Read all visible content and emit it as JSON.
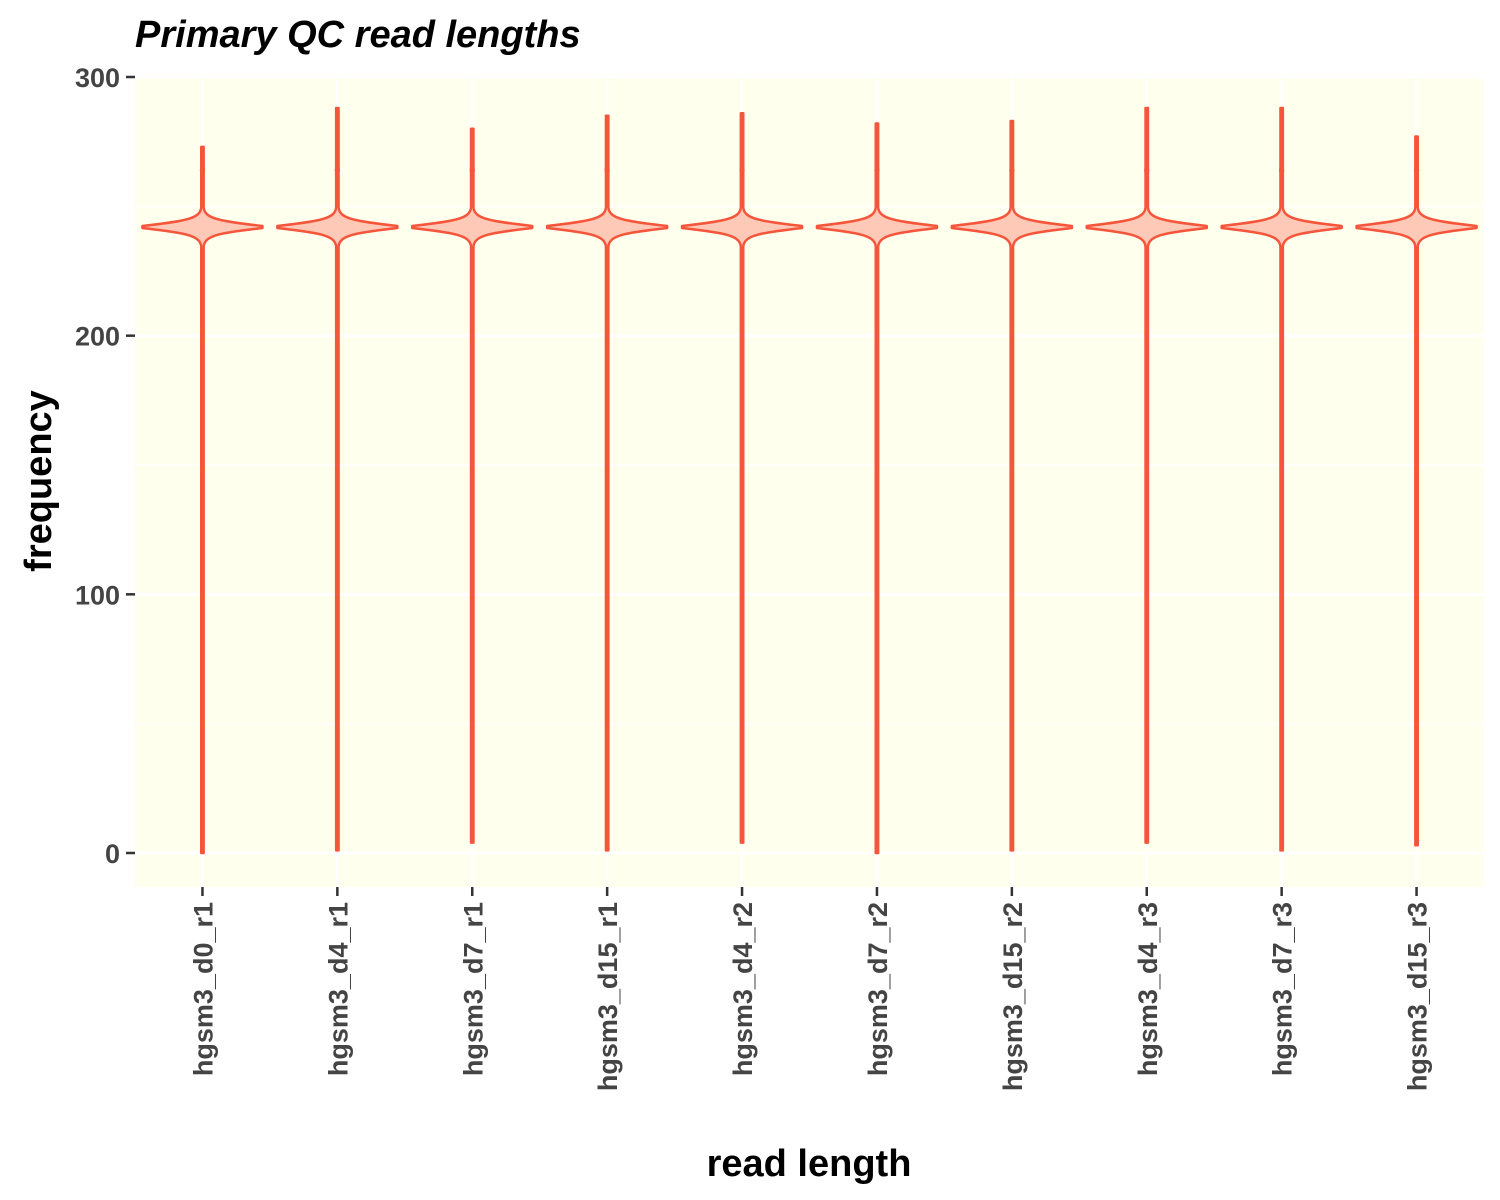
{
  "chart_data": {
    "type": "violin",
    "title": "Primary QC read lengths",
    "xlabel": "read length",
    "ylabel": "frequency",
    "ylim": [
      -12,
      300
    ],
    "yticks": [
      0,
      100,
      200,
      300
    ],
    "grid": true,
    "colors": {
      "panel": "#ffffee",
      "grid": "#ffffff",
      "stroke": "#f5553a",
      "fill": "#ffc9b8",
      "tick_text": "#444444"
    },
    "categories": [
      "hgsm3_d0_r1",
      "hgsm3_d4_r1",
      "hgsm3_d7_r1",
      "hgsm3_d15_r1",
      "hgsm3_d4_r2",
      "hgsm3_d7_r2",
      "hgsm3_d15_r2",
      "hgsm3_d4_r3",
      "hgsm3_d7_r3",
      "hgsm3_d15_r3"
    ],
    "series": [
      {
        "category": "hgsm3_d0_r1",
        "min": 0,
        "max": 273,
        "mode": 242
      },
      {
        "category": "hgsm3_d4_r1",
        "min": 1,
        "max": 288,
        "mode": 242
      },
      {
        "category": "hgsm3_d7_r1",
        "min": 4,
        "max": 280,
        "mode": 242
      },
      {
        "category": "hgsm3_d15_r1",
        "min": 1,
        "max": 285,
        "mode": 242
      },
      {
        "category": "hgsm3_d4_r2",
        "min": 4,
        "max": 286,
        "mode": 242
      },
      {
        "category": "hgsm3_d7_r2",
        "min": 0,
        "max": 282,
        "mode": 242
      },
      {
        "category": "hgsm3_d15_r2",
        "min": 1,
        "max": 283,
        "mode": 242
      },
      {
        "category": "hgsm3_d4_r3",
        "min": 4,
        "max": 288,
        "mode": 242
      },
      {
        "category": "hgsm3_d7_r3",
        "min": 1,
        "max": 288,
        "mode": 242
      },
      {
        "category": "hgsm3_d15_r3",
        "min": 3,
        "max": 277,
        "mode": 242
      }
    ]
  }
}
